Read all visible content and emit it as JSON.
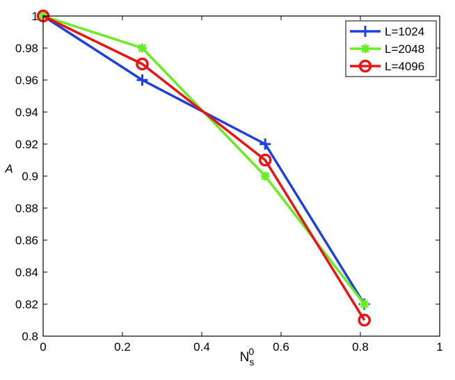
{
  "chart_data": {
    "type": "line",
    "xlabel": {
      "base": "N",
      "sub": "s",
      "sup": "0"
    },
    "ylabel": "A",
    "xlim": [
      0,
      1
    ],
    "ylim": [
      0.8,
      1.0
    ],
    "xticks": [
      0,
      0.2,
      0.4,
      0.6,
      0.8,
      1
    ],
    "xtick_labels": [
      "0",
      "0.2",
      "0.4",
      "0.6",
      "0.8",
      "1"
    ],
    "yticks": [
      0.8,
      0.82,
      0.84,
      0.86,
      0.88,
      0.9,
      0.92,
      0.94,
      0.96,
      0.98,
      1.0
    ],
    "ytick_labels": [
      "0.8",
      "0.82",
      "0.84",
      "0.86",
      "0.88",
      "0.9",
      "0.92",
      "0.94",
      "0.96",
      "0.98",
      "1"
    ],
    "grid": false,
    "legend_position": "top-right",
    "series": [
      {
        "name": "L=1024",
        "color": "#1f3fe0",
        "marker": "plus",
        "x": [
          0,
          0.25,
          0.56,
          0.81
        ],
        "y": [
          1.0,
          0.96,
          0.92,
          0.82
        ]
      },
      {
        "name": "L=2048",
        "color": "#66ee22",
        "marker": "asterisk",
        "x": [
          0,
          0.25,
          0.56,
          0.81
        ],
        "y": [
          1.0,
          0.98,
          0.9,
          0.82
        ]
      },
      {
        "name": "L=4096",
        "color": "#ee1111",
        "marker": "circle",
        "x": [
          0,
          0.25,
          0.56,
          0.81
        ],
        "y": [
          1.0,
          0.97,
          0.91,
          0.81
        ]
      }
    ]
  }
}
